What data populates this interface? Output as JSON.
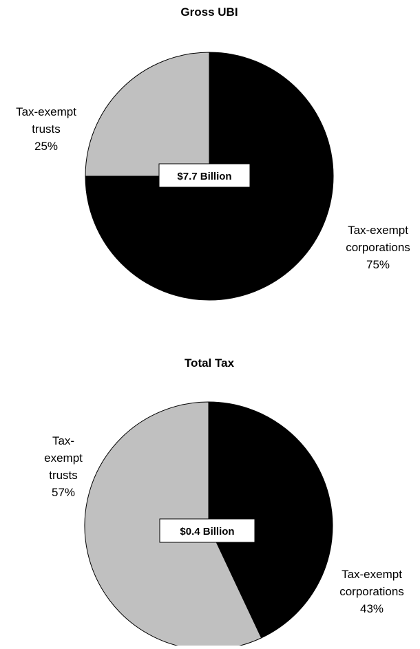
{
  "chart_data": [
    {
      "type": "pie",
      "title": "Gross UBI",
      "center_label": "$7.7 Billion",
      "slices": [
        {
          "label_lines": [
            "Tax-exempt",
            "corporations",
            "75%"
          ],
          "value": 75,
          "color": "#000000"
        },
        {
          "label_lines": [
            "Tax-exempt",
            "trusts",
            "25%"
          ],
          "value": 25,
          "color": "#c0c0c0"
        }
      ]
    },
    {
      "type": "pie",
      "title": "Total Tax",
      "center_label": "$0.4 Billion",
      "slices": [
        {
          "label_lines": [
            "Tax-exempt",
            "corporations",
            "43%"
          ],
          "value": 43,
          "color": "#000000"
        },
        {
          "label_lines": [
            "Tax-",
            "exempt",
            "trusts",
            "57%"
          ],
          "value": 57,
          "color": "#c0c0c0"
        }
      ]
    }
  ]
}
